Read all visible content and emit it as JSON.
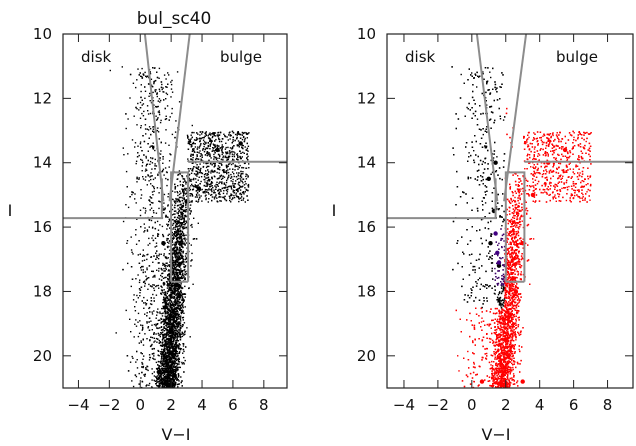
{
  "chart_data": [
    {
      "type": "scatter",
      "title": "bul_sc40",
      "xlabel": "V−I",
      "ylabel": "I",
      "xlim": [
        -5,
        9.5
      ],
      "ylim": [
        21,
        10
      ],
      "y_inverted": true,
      "x_ticks": [
        -4,
        -2,
        0,
        2,
        4,
        6,
        8
      ],
      "y_ticks": [
        10,
        12,
        14,
        16,
        18,
        20
      ],
      "x_tick_labels": [
        "−4",
        "−2",
        "0",
        "2",
        "4",
        "6",
        "8"
      ],
      "y_tick_labels": [
        "10",
        "12",
        "14",
        "16",
        "18",
        "20"
      ],
      "annotations": [
        "disk",
        "bulge"
      ],
      "series": [
        {
          "color": "#000000",
          "points": [
            [
              1.6,
              18.5
            ],
            [
              2.0,
              19.2
            ],
            [
              2.4,
              17.8
            ],
            [
              3.0,
              15.2
            ],
            [
              3.8,
              14.8
            ],
            [
              5.0,
              13.6
            ],
            [
              6.5,
              13.4
            ],
            [
              1.2,
              20.5
            ],
            [
              2.2,
              20.6
            ],
            [
              1.5,
              16.5
            ]
          ]
        }
      ],
      "selection_lines": [
        {
          "x": [
            1.5,
            0.3
          ],
          "y": [
            15.2,
            10
          ]
        },
        {
          "x": [
            1.9,
            3.2
          ],
          "y": [
            15.2,
            10
          ]
        },
        {
          "x": [
            -5,
            1.4,
            1.4
          ],
          "y": [
            15.72,
            15.72,
            14.5
          ]
        },
        {
          "x": [
            2.0,
            2.0,
            3.1,
            3.1
          ],
          "y": [
            17.7,
            14.3,
            14.3,
            17.7
          ]
        },
        {
          "x": [
            2.0,
            3.1
          ],
          "y": [
            17.7,
            17.7
          ]
        },
        {
          "x": [
            3.1,
            9.5
          ],
          "y": [
            13.97,
            13.97
          ]
        }
      ]
    },
    {
      "type": "scatter",
      "title": "",
      "xlabel": "V−I",
      "ylabel": "I",
      "xlim": [
        -5,
        9.5
      ],
      "ylim": [
        21,
        10
      ],
      "y_inverted": true,
      "x_ticks": [
        -4,
        -2,
        0,
        2,
        4,
        6,
        8
      ],
      "y_ticks": [
        10,
        12,
        14,
        16,
        18,
        20
      ],
      "x_tick_labels": [
        "−4",
        "−2",
        "0",
        "2",
        "4",
        "6",
        "8"
      ],
      "y_tick_labels": [
        "10",
        "12",
        "14",
        "16",
        "18",
        "20"
      ],
      "annotations": [
        "disk",
        "bulge"
      ],
      "series": [
        {
          "color": "#000000",
          "points": [
            [
              1.0,
              14.5
            ],
            [
              1.3,
              15.5
            ],
            [
              1.1,
              16.5
            ],
            [
              1.6,
              17.2
            ],
            [
              1.4,
              14.0
            ]
          ]
        },
        {
          "color": "#ff0000",
          "points": [
            [
              2.0,
              19.5
            ],
            [
              2.6,
              18.0
            ],
            [
              3.0,
              16.5
            ],
            [
              3.6,
              15.0
            ],
            [
              4.5,
              14.0
            ],
            [
              5.5,
              13.6
            ],
            [
              0.6,
              20.8
            ],
            [
              3.0,
              20.8
            ]
          ]
        },
        {
          "color": "#400080",
          "points": [
            [
              1.4,
              16.2
            ],
            [
              1.5,
              16.8
            ],
            [
              1.6,
              17.1
            ]
          ]
        }
      ],
      "selection_lines": [
        {
          "x": [
            1.5,
            0.3
          ],
          "y": [
            15.2,
            10
          ]
        },
        {
          "x": [
            1.9,
            3.2
          ],
          "y": [
            15.2,
            10
          ]
        },
        {
          "x": [
            -5,
            1.4,
            1.4
          ],
          "y": [
            15.72,
            15.72,
            14.5
          ]
        },
        {
          "x": [
            2.0,
            2.0,
            3.1,
            3.1
          ],
          "y": [
            17.7,
            14.3,
            14.3,
            17.7
          ]
        },
        {
          "x": [
            2.0,
            3.1
          ],
          "y": [
            17.7,
            17.7
          ]
        },
        {
          "x": [
            3.1,
            9.5
          ],
          "y": [
            13.97,
            13.97
          ]
        }
      ]
    }
  ]
}
